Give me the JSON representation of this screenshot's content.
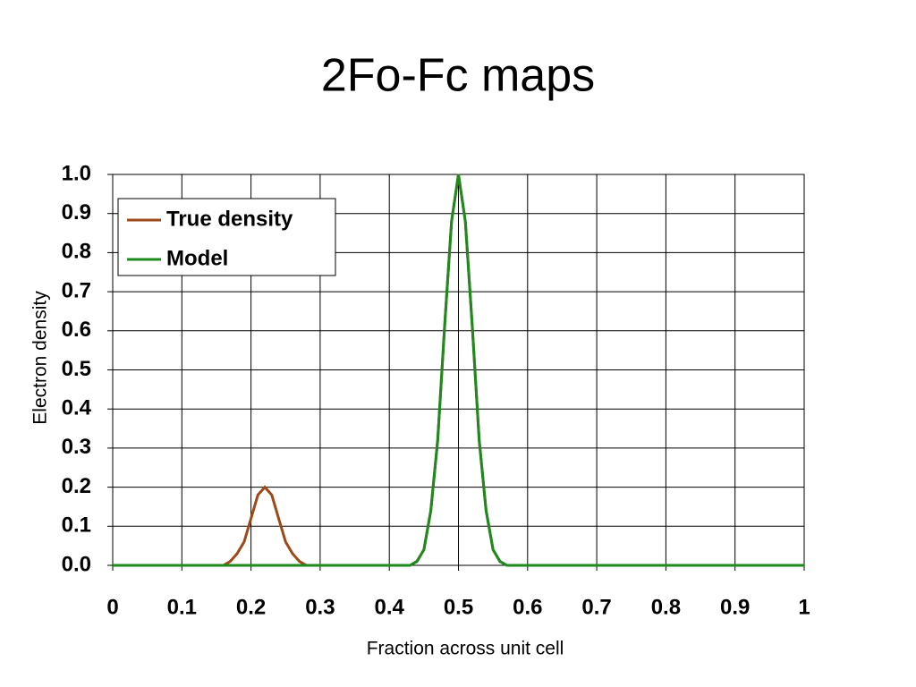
{
  "chart_data": {
    "type": "line",
    "title": "2Fo-Fc maps",
    "x_label": "Fraction across unit cell",
    "y_label": "Electron density",
    "x": [
      0,
      0.01,
      0.02,
      0.03,
      0.04,
      0.05,
      0.06,
      0.07,
      0.08,
      0.09,
      0.1,
      0.11,
      0.12,
      0.13,
      0.14,
      0.15,
      0.16,
      0.17,
      0.18,
      0.19,
      0.2,
      0.21,
      0.22,
      0.23,
      0.24,
      0.25,
      0.26,
      0.27,
      0.28,
      0.29,
      0.3,
      0.31,
      0.32,
      0.33,
      0.34,
      0.35,
      0.36,
      0.37,
      0.38,
      0.39,
      0.4,
      0.41,
      0.42,
      0.43,
      0.44,
      0.45,
      0.46,
      0.47,
      0.48,
      0.49,
      0.5,
      0.51,
      0.52,
      0.53,
      0.54,
      0.55,
      0.56,
      0.57,
      0.58,
      0.59,
      0.6,
      0.61,
      0.62,
      0.63,
      0.64,
      0.65,
      0.66,
      0.67,
      0.68,
      0.69,
      0.7,
      0.71,
      0.72,
      0.73,
      0.74,
      0.75,
      0.76,
      0.77,
      0.78,
      0.79,
      0.8,
      0.81,
      0.82,
      0.83,
      0.84,
      0.85,
      0.86,
      0.87,
      0.88,
      0.89,
      0.9,
      0.91,
      0.92,
      0.93,
      0.94,
      0.95,
      0.96,
      0.97,
      0.98,
      0.99,
      1
    ],
    "series": [
      {
        "name": "True density",
        "color": "#9c4a1a",
        "values": [
          0,
          0,
          0,
          0,
          0,
          0,
          0,
          0,
          0,
          0,
          0,
          0,
          0,
          0,
          0,
          0,
          0,
          0.01,
          0.03,
          0.06,
          0.12,
          0.18,
          0.2,
          0.18,
          0.12,
          0.06,
          0.03,
          0.01,
          0,
          0,
          0,
          0,
          0,
          0,
          0,
          0,
          0,
          0,
          0,
          0,
          0,
          0,
          0,
          0,
          0.01,
          0.04,
          0.14,
          0.32,
          0.61,
          0.88,
          1,
          0.88,
          0.61,
          0.32,
          0.14,
          0.04,
          0.01,
          0,
          0,
          0,
          0,
          0,
          0,
          0,
          0,
          0,
          0,
          0,
          0,
          0,
          0,
          0,
          0,
          0,
          0,
          0,
          0,
          0,
          0,
          0,
          0,
          0,
          0,
          0,
          0,
          0,
          0,
          0,
          0,
          0,
          0,
          0,
          0,
          0,
          0,
          0,
          0,
          0,
          0,
          0,
          0
        ]
      },
      {
        "name": "Model",
        "color": "#1e8a1e",
        "values": [
          0,
          0,
          0,
          0,
          0,
          0,
          0,
          0,
          0,
          0,
          0,
          0,
          0,
          0,
          0,
          0,
          0,
          0,
          0,
          0,
          0,
          0,
          0,
          0,
          0,
          0,
          0,
          0,
          0,
          0,
          0,
          0,
          0,
          0,
          0,
          0,
          0,
          0,
          0,
          0,
          0,
          0,
          0,
          0,
          0.01,
          0.04,
          0.14,
          0.32,
          0.61,
          0.88,
          1,
          0.88,
          0.61,
          0.32,
          0.14,
          0.04,
          0.01,
          0,
          0,
          0,
          0,
          0,
          0,
          0,
          0,
          0,
          0,
          0,
          0,
          0,
          0,
          0,
          0,
          0,
          0,
          0,
          0,
          0,
          0,
          0,
          0,
          0,
          0,
          0,
          0,
          0,
          0,
          0,
          0,
          0,
          0,
          0,
          0,
          0,
          0,
          0,
          0,
          0,
          0,
          0,
          0
        ]
      }
    ],
    "xlim": [
      0,
      1
    ],
    "xticks": [
      0,
      0.1,
      0.2,
      0.3,
      0.4,
      0.5,
      0.6,
      0.7,
      0.8,
      0.9,
      1
    ],
    "ylim": [
      0,
      1
    ],
    "yticks": [
      {
        "value": 0,
        "label": "0.0"
      },
      0.1,
      0.2,
      0.3,
      0.4,
      0.5,
      0.6,
      0.7,
      0.8,
      0.9,
      {
        "value": 1,
        "label": "1.0"
      }
    ],
    "grid": true,
    "legend_position": "upper-left"
  }
}
